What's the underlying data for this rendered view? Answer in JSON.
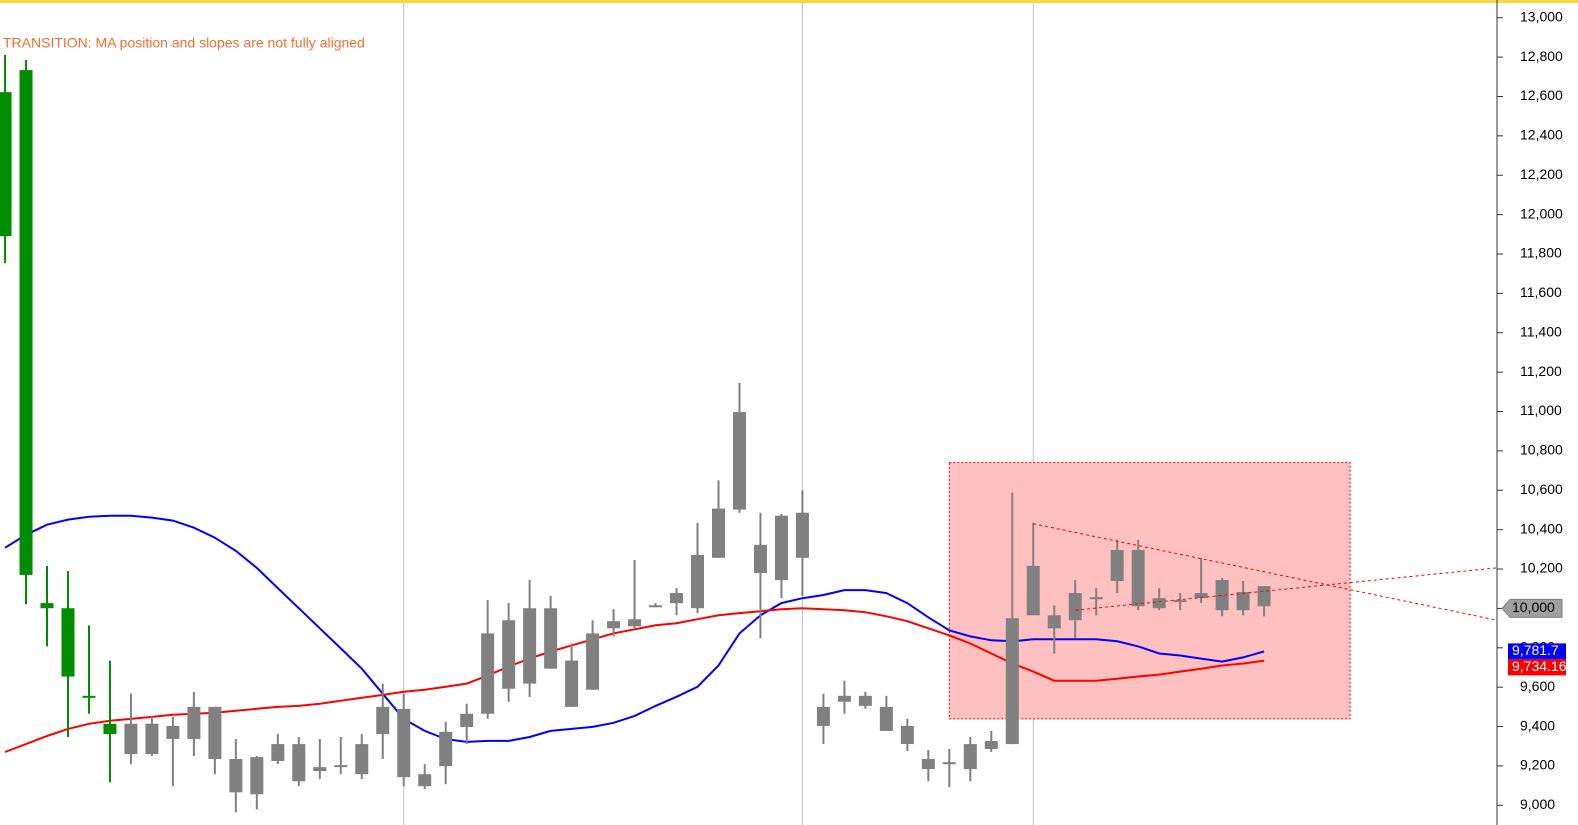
{
  "chart_data": {
    "type": "candlestick",
    "annotation": "TRANSITION: MA position and slopes are not fully aligned",
    "annotation_color": "#f07030",
    "xlim": [
      -0.24,
      71.1
    ],
    "ylim": [
      8900,
      13090
    ],
    "yticks": [
      {
        "value": 9000,
        "label": "9,000"
      },
      {
        "value": 9200,
        "label": "9,200"
      },
      {
        "value": 9400,
        "label": "9,400"
      },
      {
        "value": 9600,
        "label": "9,600"
      },
      {
        "value": 9800,
        "label": "9,800"
      },
      {
        "value": 10000,
        "label": "10,000"
      },
      {
        "value": 10200,
        "label": "10,200"
      },
      {
        "value": 10400,
        "label": "10,400"
      },
      {
        "value": 10600,
        "label": "10,600"
      },
      {
        "value": 10800,
        "label": "10,800"
      },
      {
        "value": 11000,
        "label": "11,000"
      },
      {
        "value": 11200,
        "label": "11,200"
      },
      {
        "value": 11400,
        "label": "11,400"
      },
      {
        "value": 11600,
        "label": "11,600"
      },
      {
        "value": 11800,
        "label": "11,800"
      },
      {
        "value": 12000,
        "label": "12,000"
      },
      {
        "value": 12200,
        "label": "12,200"
      },
      {
        "value": 12400,
        "label": "12,400"
      },
      {
        "value": 12600,
        "label": "12,600"
      },
      {
        "value": 12800,
        "label": "12,800"
      },
      {
        "value": 13000,
        "label": "13,000"
      }
    ],
    "separators": [
      19,
      38,
      49
    ],
    "candles": {
      "open": [
        11891,
        12734,
        10027,
        10001,
        9551,
        9414,
        9414,
        9414,
        9403,
        9500,
        9500,
        9235,
        9245,
        9311,
        9311,
        9194,
        9199,
        9311,
        9500,
        9490,
        9158,
        9373,
        9465,
        9873,
        9940,
        10001,
        10001,
        9735,
        9873,
        9935,
        9945,
        10016,
        10078,
        10272,
        10507,
        10997,
        10323,
        10471,
        10486,
        9500,
        9556,
        9556,
        9500,
        9403,
        9235,
        9219,
        9311,
        9327,
        9950,
        10216,
        9965,
        10078,
        10052,
        10297,
        10297,
        10052,
        10037,
        10078,
        10144,
        10083,
        10113
      ],
      "high": [
        12811,
        12785,
        10216,
        10190,
        9914,
        9735,
        9567,
        9454,
        9449,
        9577,
        9500,
        9337,
        9250,
        9362,
        9347,
        9337,
        9347,
        9362,
        9618,
        9567,
        9209,
        9424,
        9516,
        10042,
        10027,
        10144,
        10063,
        9822,
        9940,
        9996,
        10246,
        10027,
        10103,
        10435,
        10650,
        11145,
        10486,
        10481,
        10599,
        9567,
        9633,
        9577,
        9556,
        9439,
        9281,
        9286,
        9347,
        9378,
        10588,
        10435,
        10016,
        10144,
        10103,
        10349,
        10349,
        10103,
        10078,
        10257,
        10154,
        10139,
        10113
      ],
      "low": [
        11753,
        10021,
        9807,
        9347,
        9465,
        9117,
        9209,
        9250,
        9097,
        9250,
        9158,
        8964,
        8979,
        9209,
        9097,
        9133,
        9158,
        9133,
        9235,
        9097,
        9082,
        9107,
        9311,
        9439,
        9526,
        9551,
        9694,
        9500,
        9587,
        9858,
        9899,
        10006,
        9965,
        9976,
        10257,
        10486,
        9848,
        10052,
        10063,
        9311,
        9465,
        9490,
        9378,
        9276,
        9122,
        9092,
        9122,
        9271,
        9311,
        10027,
        9771,
        9848,
        9965,
        10078,
        9991,
        9991,
        9991,
        10027,
        9960,
        9965,
        9960
      ],
      "close": [
        12622,
        10170,
        10001,
        9654,
        9556,
        9362,
        9260,
        9260,
        9337,
        9337,
        9235,
        9066,
        9056,
        9225,
        9122,
        9174,
        9204,
        9158,
        9362,
        9143,
        9097,
        9199,
        9398,
        9465,
        9592,
        9618,
        9694,
        9500,
        9587,
        9899,
        9909,
        10016,
        10027,
        10001,
        10257,
        10502,
        10180,
        10144,
        10257,
        9403,
        9526,
        9505,
        9378,
        9311,
        9184,
        9219,
        9184,
        9286,
        9311,
        9965,
        9899,
        9940,
        10057,
        10139,
        10011,
        10001,
        10042,
        10052,
        9991,
        9991,
        10011
      ],
      "colors": [
        "#008c00",
        "#008c00",
        "#008c00",
        "#008c00",
        "#008c00",
        "#008c00",
        "#808080",
        "#808080",
        "#808080",
        "#808080",
        "#808080",
        "#808080",
        "#808080",
        "#808080",
        "#808080",
        "#808080",
        "#808080",
        "#808080",
        "#808080",
        "#808080",
        "#808080",
        "#808080",
        "#808080",
        "#808080",
        "#808080",
        "#808080",
        "#808080",
        "#808080",
        "#808080",
        "#808080",
        "#808080",
        "#808080",
        "#808080",
        "#808080",
        "#808080",
        "#808080",
        "#808080",
        "#808080",
        "#808080",
        "#808080",
        "#808080",
        "#808080",
        "#808080",
        "#808080",
        "#808080",
        "#808080",
        "#808080",
        "#808080",
        "#808080",
        "#808080",
        "#808080",
        "#808080",
        "#808080",
        "#808080",
        "#808080",
        "#808080",
        "#808080",
        "#808080",
        "#808080",
        "#808080",
        "#808080"
      ]
    },
    "series": [
      {
        "color": "#0000ff",
        "end_label": "9,781.7",
        "values": [
          10308,
          10374,
          10425,
          10451,
          10466,
          10471,
          10471,
          10461,
          10446,
          10410,
          10359,
          10292,
          10206,
          10103,
          10001,
          9899,
          9797,
          9694,
          9567,
          9439,
          9378,
          9337,
          9322,
          9327,
          9327,
          9347,
          9378,
          9388,
          9398,
          9419,
          9454,
          9505,
          9551,
          9602,
          9710,
          9873,
          9965,
          10027,
          10052,
          10068,
          10093,
          10093,
          10078,
          10027,
          9955,
          9889,
          9858,
          9838,
          9833,
          9843,
          9843,
          9843,
          9843,
          9833,
          9807,
          9771,
          9761,
          9745,
          9730,
          9751,
          9781.7
        ]
      },
      {
        "color": "#ff0000",
        "end_label": "9,734.16",
        "values": [
          9271,
          9311,
          9352,
          9388,
          9414,
          9429,
          9439,
          9449,
          9460,
          9465,
          9470,
          9480,
          9490,
          9500,
          9505,
          9516,
          9531,
          9546,
          9561,
          9577,
          9587,
          9602,
          9618,
          9659,
          9705,
          9745,
          9781,
          9812,
          9843,
          9873,
          9894,
          9914,
          9925,
          9945,
          9965,
          9976,
          9986,
          9996,
          10001,
          9996,
          9991,
          9981,
          9960,
          9935,
          9899,
          9863,
          9822,
          9771,
          9720,
          9679,
          9633,
          9633,
          9633,
          9643,
          9654,
          9664,
          9679,
          9694,
          9710,
          9720,
          9734.16
        ]
      }
    ],
    "zone": {
      "x": [
        45,
        64.1
      ],
      "y": [
        9439,
        10741
      ],
      "color": "#ffc0c0"
    },
    "trendlines": [
      {
        "x": [
          49,
          71.1
        ],
        "y": [
          10430,
          9940
        ]
      },
      {
        "x": [
          51,
          71.1
        ],
        "y": [
          9991,
          10206
        ]
      }
    ],
    "price_marker": {
      "value": 10000,
      "label": "10,000"
    }
  }
}
